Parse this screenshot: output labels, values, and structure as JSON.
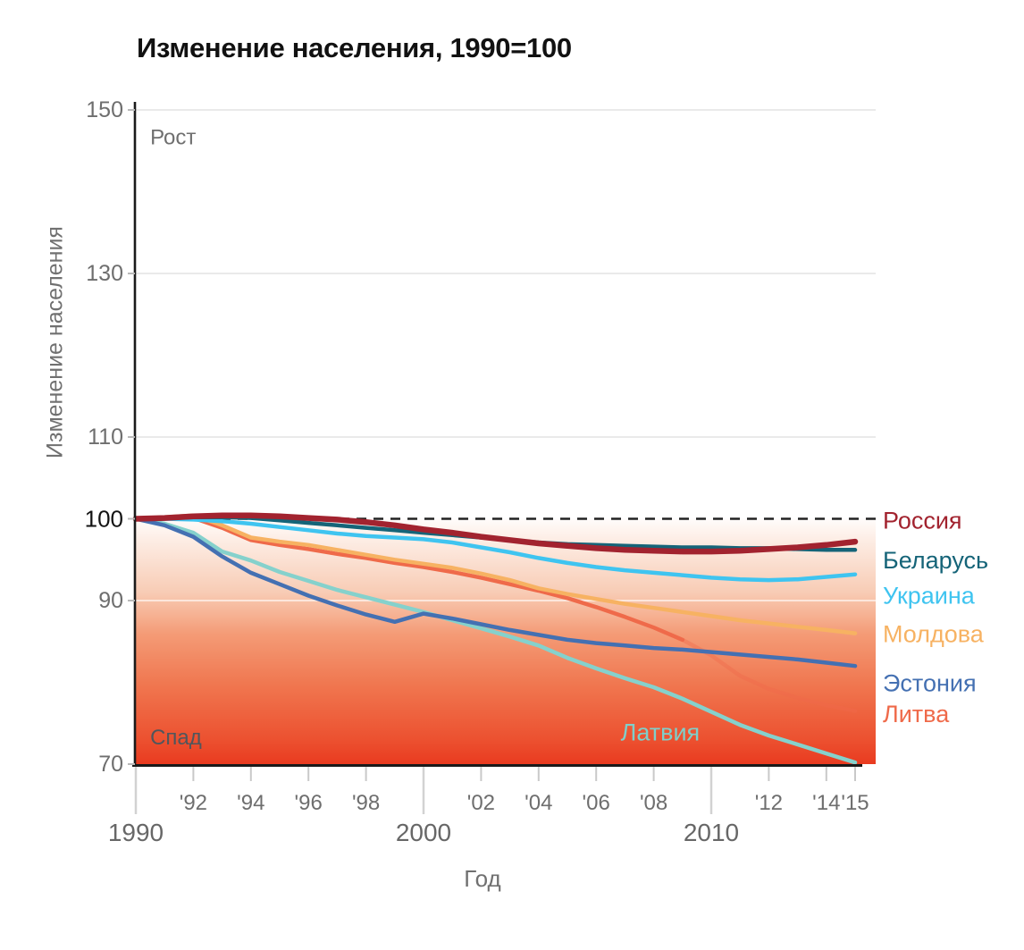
{
  "chart_data": {
    "type": "line",
    "title": "Изменение населения, 1990=100",
    "xlabel": "Год",
    "ylabel": "Изменение населения",
    "x_range": [
      1990,
      2015
    ],
    "ylim": [
      70,
      150
    ],
    "baseline_value": 100,
    "grid": "horizontal",
    "legend_position": "right-edge-labels",
    "years": [
      1990,
      1991,
      1992,
      1993,
      1994,
      1995,
      1996,
      1997,
      1998,
      1999,
      2000,
      2001,
      2002,
      2003,
      2004,
      2005,
      2006,
      2007,
      2008,
      2009,
      2010,
      2011,
      2012,
      2013,
      2014,
      2015
    ],
    "series": [
      {
        "id": "latvia",
        "name": "Латвия",
        "color": "#85d1cc",
        "width": 4.5,
        "legend": false,
        "values": [
          100,
          99.4,
          98.3,
          96.0,
          94.9,
          93.5,
          92.4,
          91.3,
          90.4,
          89.5,
          88.6,
          87.6,
          86.6,
          85.6,
          84.5,
          83.0,
          81.7,
          80.5,
          79.4,
          78.0,
          76.4,
          74.8,
          73.5,
          72.4,
          71.3,
          70.2
        ]
      },
      {
        "id": "lithuania",
        "name": "Литва",
        "color": "#ef6a4a",
        "width": 4.5,
        "legend": true,
        "label_v": 76.1,
        "fade_from_year": 2009,
        "fade_opacity": 0.4,
        "values": [
          100,
          100.1,
          100.1,
          98.9,
          97.4,
          96.8,
          96.3,
          95.7,
          95.2,
          94.6,
          94.1,
          93.5,
          92.8,
          92.0,
          91.2,
          90.3,
          89.2,
          88.0,
          86.7,
          85.2,
          83.3,
          80.8,
          79.2,
          78.1,
          77.2,
          76.5
        ]
      },
      {
        "id": "estonia",
        "name": "Эстония",
        "color": "#4470b2",
        "width": 4.5,
        "legend": true,
        "label_v": 79.9,
        "values": [
          100,
          99.2,
          97.8,
          95.4,
          93.4,
          92.0,
          90.6,
          89.4,
          88.3,
          87.4,
          88.4,
          87.8,
          87.1,
          86.4,
          85.8,
          85.2,
          84.8,
          84.5,
          84.2,
          84.0,
          83.7,
          83.4,
          83.1,
          82.8,
          82.4,
          82.0
        ]
      },
      {
        "id": "moldova",
        "name": "Молдова",
        "color": "#f7b262",
        "width": 4.5,
        "legend": true,
        "label_v": 85.9,
        "values": [
          100,
          100.2,
          100.4,
          99.2,
          97.7,
          97.2,
          96.8,
          96.2,
          95.6,
          95.0,
          94.5,
          94.0,
          93.3,
          92.5,
          91.5,
          90.8,
          90.2,
          89.6,
          89.1,
          88.6,
          88.1,
          87.6,
          87.2,
          86.8,
          86.4,
          86.0
        ]
      },
      {
        "id": "ukraine",
        "name": "Украина",
        "color": "#3fc4f0",
        "width": 4.5,
        "legend": true,
        "label_v": 90.6,
        "values": [
          100,
          100.0,
          99.9,
          99.7,
          99.4,
          99.0,
          98.6,
          98.2,
          97.9,
          97.7,
          97.5,
          97.1,
          96.5,
          95.9,
          95.2,
          94.6,
          94.1,
          93.7,
          93.4,
          93.1,
          92.8,
          92.6,
          92.5,
          92.6,
          92.9,
          93.2
        ]
      },
      {
        "id": "belarus",
        "name": "Беларусь",
        "color": "#156478",
        "width": 4.5,
        "legend": true,
        "label_v": 94.9,
        "values": [
          100,
          100.1,
          100.2,
          100.2,
          100.1,
          99.8,
          99.5,
          99.2,
          98.9,
          98.6,
          98.3,
          98.0,
          97.7,
          97.4,
          97.1,
          96.9,
          96.8,
          96.7,
          96.6,
          96.5,
          96.5,
          96.4,
          96.4,
          96.3,
          96.2,
          96.2
        ]
      },
      {
        "id": "russia",
        "name": "Россия",
        "color": "#a2232f",
        "width": 6.5,
        "legend": true,
        "label_v": 99.8,
        "values": [
          100,
          100.1,
          100.3,
          100.4,
          100.4,
          100.3,
          100.1,
          99.9,
          99.6,
          99.2,
          98.7,
          98.3,
          97.8,
          97.4,
          97.0,
          96.7,
          96.4,
          96.2,
          96.1,
          96.0,
          96.0,
          96.1,
          96.3,
          96.5,
          96.8,
          97.2
        ]
      }
    ],
    "x_ticks": [
      {
        "label": "1990",
        "year": 1990,
        "major": true
      },
      {
        "label": "'92",
        "year": 1992
      },
      {
        "label": "'94",
        "year": 1994
      },
      {
        "label": "'96",
        "year": 1996
      },
      {
        "label": "'98",
        "year": 1998
      },
      {
        "label": "2000",
        "year": 2000,
        "major": true
      },
      {
        "label": "'02",
        "year": 2002
      },
      {
        "label": "'04",
        "year": 2004
      },
      {
        "label": "'06",
        "year": 2006
      },
      {
        "label": "'08",
        "year": 2008
      },
      {
        "label": "2010",
        "year": 2010,
        "major": true
      },
      {
        "label": "'12",
        "year": 2012
      },
      {
        "label": "'14",
        "year": 2014
      },
      {
        "label": "'15",
        "year": 2015
      }
    ],
    "y_ticks": [
      {
        "label": "150",
        "value": 150,
        "grid": "gray"
      },
      {
        "label": "130",
        "value": 130,
        "grid": "gray"
      },
      {
        "label": "110",
        "value": 110,
        "grid": "gray"
      },
      {
        "label": "100",
        "value": 100,
        "emphasis": true
      },
      {
        "label": "90",
        "value": 90,
        "grid": "white"
      },
      {
        "label": "70",
        "value": 70
      }
    ],
    "annotations": [
      {
        "id": "rost",
        "text": "Рост",
        "year": 1990.5,
        "value": 146.6,
        "color": "#6f6f6f",
        "size": 24
      },
      {
        "id": "spad",
        "text": "Спад",
        "year": 1990.5,
        "value": 73.2,
        "color": "#50565c",
        "size": 24
      }
    ],
    "inline_series_label": {
      "text": "Латвия",
      "series": "latvia",
      "year": 2006.85,
      "value": 73.9,
      "color": "#7fcfca",
      "size": 27
    },
    "baseline_style": {
      "color": "#222222",
      "dash": "11 8"
    },
    "gradient": {
      "direction": "top-white-to-bottom-red",
      "stops": [
        {
          "offset": "0%",
          "color": "#fffcfb"
        },
        {
          "offset": "8%",
          "color": "#fdeee6"
        },
        {
          "offset": "30%",
          "color": "#f8ccb5"
        },
        {
          "offset": "47%",
          "color": "#f49b76"
        },
        {
          "offset": "68%",
          "color": "#f0764f"
        },
        {
          "offset": "90%",
          "color": "#ec5130"
        },
        {
          "offset": "100%",
          "color": "#e93b20"
        }
      ]
    }
  }
}
